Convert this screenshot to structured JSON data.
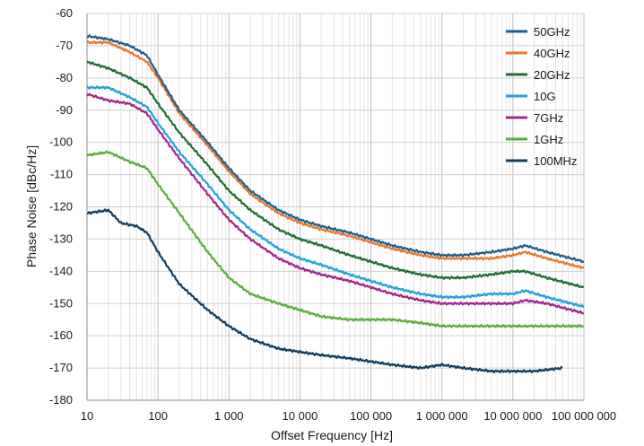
{
  "chart_data": {
    "type": "line",
    "xlabel": "Offset Frequency [Hz]",
    "ylabel": "Phase Noise [dBc/Hz]",
    "xscale": "log",
    "xlim": [
      10,
      100000000
    ],
    "ylim": [
      -180,
      -60
    ],
    "x_ticks": [
      {
        "value": 10,
        "label": "10"
      },
      {
        "value": 100,
        "label": "100"
      },
      {
        "value": 1000,
        "label": "1 000"
      },
      {
        "value": 10000,
        "label": "10 000"
      },
      {
        "value": 100000,
        "label": "100 000"
      },
      {
        "value": 1000000,
        "label": "1 000 000"
      },
      {
        "value": 10000000,
        "label": "10 000 000"
      },
      {
        "value": 100000000,
        "label": "100 000 000"
      }
    ],
    "y_ticks": [
      -60,
      -70,
      -80,
      -90,
      -100,
      -110,
      -120,
      -130,
      -140,
      -150,
      -160,
      -170,
      -180
    ],
    "grid": true,
    "legend_position": "top-right",
    "series": [
      {
        "name": "50GHz",
        "color": "#1f5f8b",
        "x": [
          10,
          20,
          40,
          70,
          100,
          200,
          500,
          1000,
          2000,
          5000,
          10000,
          20000,
          50000,
          100000,
          200000,
          500000,
          1000000,
          2000000,
          5000000,
          10000000,
          15000000,
          30000000,
          100000000
        ],
        "y": [
          -67,
          -68,
          -70,
          -73,
          -79,
          -90,
          -100,
          -108,
          -115,
          -121,
          -124,
          -126,
          -128,
          -130,
          -132,
          -134,
          -135,
          -135,
          -134,
          -133,
          -132,
          -134,
          -137
        ]
      },
      {
        "name": "40GHz",
        "color": "#e8782e",
        "x": [
          10,
          20,
          40,
          70,
          100,
          200,
          500,
          1000,
          2000,
          5000,
          10000,
          20000,
          50000,
          100000,
          200000,
          500000,
          1000000,
          2000000,
          5000000,
          10000000,
          15000000,
          30000000,
          100000000
        ],
        "y": [
          -69,
          -69,
          -72,
          -75,
          -80,
          -91,
          -101,
          -109,
          -116,
          -122,
          -125,
          -127,
          -129,
          -131,
          -133,
          -135,
          -136,
          -136,
          -136,
          -135,
          -134,
          -136,
          -139
        ]
      },
      {
        "name": "20GHz",
        "color": "#1e6e32",
        "x": [
          10,
          20,
          40,
          70,
          100,
          200,
          500,
          1000,
          2000,
          5000,
          10000,
          20000,
          50000,
          100000,
          200000,
          500000,
          1000000,
          2000000,
          5000000,
          10000000,
          15000000,
          30000000,
          100000000
        ],
        "y": [
          -75,
          -77,
          -80,
          -83,
          -88,
          -97,
          -107,
          -115,
          -121,
          -127,
          -130,
          -132,
          -135,
          -137,
          -139,
          -141,
          -142,
          -142,
          -141,
          -140,
          -140,
          -142,
          -145
        ]
      },
      {
        "name": "10G",
        "color": "#1fa3d6",
        "x": [
          10,
          20,
          40,
          70,
          100,
          200,
          500,
          1000,
          2000,
          5000,
          10000,
          20000,
          50000,
          100000,
          200000,
          500000,
          1000000,
          2000000,
          5000000,
          10000000,
          15000000,
          30000000,
          100000000
        ],
        "y": [
          -83,
          -83,
          -86,
          -89,
          -94,
          -103,
          -113,
          -121,
          -127,
          -133,
          -136,
          -138,
          -141,
          -143,
          -145,
          -147,
          -148,
          -148,
          -147,
          -147,
          -146,
          -148,
          -151
        ]
      },
      {
        "name": "7GHz",
        "color": "#a0288c",
        "x": [
          10,
          20,
          40,
          70,
          100,
          200,
          500,
          1000,
          2000,
          5000,
          10000,
          20000,
          50000,
          100000,
          200000,
          500000,
          1000000,
          2000000,
          5000000,
          10000000,
          15000000,
          30000000,
          100000000
        ],
        "y": [
          -85,
          -87,
          -88,
          -91,
          -96,
          -105,
          -116,
          -124,
          -130,
          -136,
          -139,
          -141,
          -143,
          -145,
          -147,
          -149,
          -150,
          -150,
          -150,
          -150,
          -149,
          -150,
          -153
        ]
      },
      {
        "name": "1GHz",
        "color": "#5aad3c",
        "x": [
          10,
          20,
          40,
          70,
          100,
          200,
          500,
          1000,
          2000,
          5000,
          10000,
          20000,
          50000,
          100000,
          200000,
          500000,
          1000000,
          2000000,
          5000000,
          10000000,
          15000000,
          30000000,
          100000000
        ],
        "y": [
          -104,
          -103,
          -106,
          -108,
          -113,
          -122,
          -134,
          -142,
          -147,
          -150,
          -152,
          -154,
          -155,
          -155,
          -155,
          -156,
          -157,
          -157,
          -157,
          -157,
          -157,
          -157,
          -157
        ]
      },
      {
        "name": "100MHz",
        "color": "#113d5c",
        "x": [
          10,
          20,
          30,
          50,
          70,
          100,
          200,
          500,
          1000,
          2000,
          5000,
          10000,
          20000,
          50000,
          100000,
          200000,
          500000,
          1000000,
          2000000,
          5000000,
          10000000,
          20000000,
          50000000
        ],
        "y": [
          -122,
          -121,
          -125,
          -126,
          -128,
          -134,
          -144,
          -152,
          -157,
          -161,
          -164,
          -165,
          -166,
          -167,
          -168,
          -169,
          -170,
          -169,
          -170,
          -171,
          -171,
          -171,
          -170
        ]
      }
    ]
  }
}
